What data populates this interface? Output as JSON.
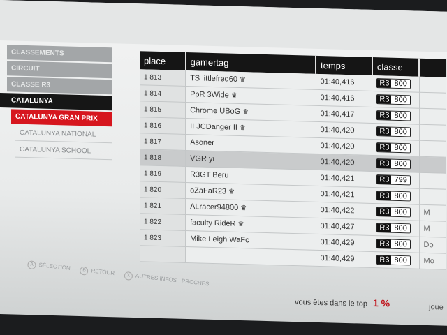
{
  "sidebar": {
    "items": [
      {
        "label": "CLASSEMENTS",
        "state": "breadcrumb"
      },
      {
        "label": "CIRCUIT",
        "state": "breadcrumb"
      },
      {
        "label": "CLASSE R3",
        "state": "breadcrumb"
      },
      {
        "label": "CATALUNYA",
        "state": "active"
      },
      {
        "label": "CATALUNYA GRAN PRIX",
        "state": "selected"
      },
      {
        "label": "CATALUNYA NATIONAL",
        "state": "option"
      },
      {
        "label": "CATALUNYA SCHOOL",
        "state": "option"
      }
    ]
  },
  "table": {
    "headers": {
      "place": "place",
      "gamertag": "gamertag",
      "temps": "temps",
      "classe": "classe"
    },
    "rows": [
      {
        "place": "1 813",
        "gamertag": "TS littlefred60",
        "crown": true,
        "temps": "01:40,416",
        "class": "R3",
        "rating": "800",
        "extra": ""
      },
      {
        "place": "1 814",
        "gamertag": "PpR 3Wide",
        "crown": true,
        "temps": "01:40,416",
        "class": "R3",
        "rating": "800",
        "extra": ""
      },
      {
        "place": "1 815",
        "gamertag": "Chrome UBoG",
        "crown": true,
        "temps": "01:40,417",
        "class": "R3",
        "rating": "800",
        "extra": ""
      },
      {
        "place": "1 816",
        "gamertag": "II JCDanger II",
        "crown": true,
        "temps": "01:40,420",
        "class": "R3",
        "rating": "800",
        "extra": ""
      },
      {
        "place": "1 817",
        "gamertag": "Asoner",
        "crown": false,
        "temps": "01:40,420",
        "class": "R3",
        "rating": "800",
        "extra": ""
      },
      {
        "place": "1 818",
        "gamertag": "VGR yi",
        "crown": false,
        "temps": "01:40,420",
        "class": "R3",
        "rating": "800",
        "extra": "",
        "highlighted": true
      },
      {
        "place": "1 819",
        "gamertag": "R3GT Beru",
        "crown": false,
        "temps": "01:40,421",
        "class": "R3",
        "rating": "799",
        "extra": ""
      },
      {
        "place": "1 820",
        "gamertag": "oZaFaR23",
        "crown": true,
        "temps": "01:40,421",
        "class": "R3",
        "rating": "800",
        "extra": ""
      },
      {
        "place": "1 821",
        "gamertag": "ALracer94800",
        "crown": true,
        "temps": "01:40,422",
        "class": "R3",
        "rating": "800",
        "extra": "M"
      },
      {
        "place": "1 822",
        "gamertag": "faculty RideR",
        "crown": true,
        "temps": "01:40,427",
        "class": "R3",
        "rating": "800",
        "extra": "M"
      },
      {
        "place": "1 823",
        "gamertag": "Mike Leigh WaFc",
        "crown": false,
        "temps": "01:40,429",
        "class": "R3",
        "rating": "800",
        "extra": "Do"
      },
      {
        "place": "",
        "gamertag": "",
        "crown": false,
        "temps": "01:40,429",
        "class": "R3",
        "rating": "800",
        "extra": "Mo"
      }
    ]
  },
  "hints": [
    {
      "key": "A",
      "label": "SÉLECTION"
    },
    {
      "key": "B",
      "label": "RETOUR"
    },
    {
      "key": "X",
      "label": "AUTRES INFOS - PROCHES"
    }
  ],
  "footer": {
    "top_text": "vous êtes dans le top",
    "top_value": "1 %",
    "cut_text": "joue"
  },
  "colors": {
    "accent": "#d6161e",
    "header_bg": "#151515",
    "sidebar_gray": "#a3a6a8"
  }
}
